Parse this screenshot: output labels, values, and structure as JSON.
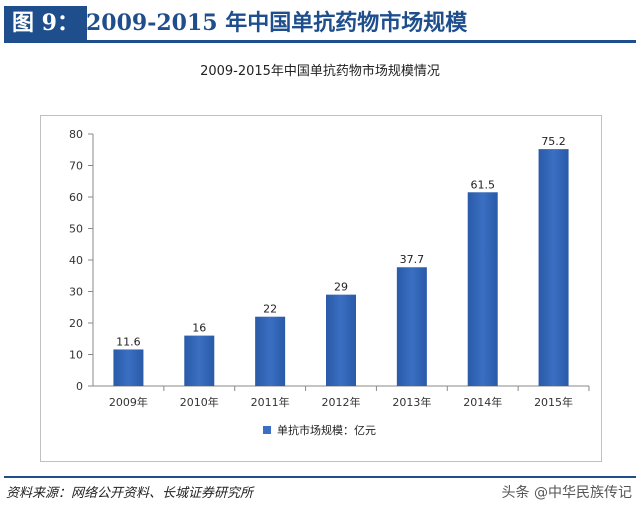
{
  "header": {
    "figure_label": "图 9：",
    "title": "2009-2015 年中国单抗药物市场规模"
  },
  "chart_data": {
    "type": "bar",
    "title": "2009-2015年中国单抗药物市场规模情况",
    "categories": [
      "2009年",
      "2010年",
      "2011年",
      "2012年",
      "2013年",
      "2014年",
      "2015年"
    ],
    "series": [
      {
        "name": "单抗市场规模：亿元",
        "values": [
          11.6,
          16,
          22,
          29,
          37.7,
          61.5,
          75.2
        ],
        "labels": [
          "11.6",
          "16",
          "22",
          "29",
          "37.7",
          "61.5",
          "75.2"
        ],
        "color": "#3a6fc2"
      }
    ],
    "ylim": [
      0,
      80
    ],
    "yticks": [
      0,
      10,
      20,
      30,
      40,
      50,
      60,
      70,
      80
    ],
    "ytick_labels": [
      "0",
      "10",
      "20",
      "30",
      "40",
      "50",
      "60",
      "70",
      "80"
    ],
    "xlabel": "",
    "ylabel": "",
    "grid": false,
    "legend_position": "bottom"
  },
  "footer": {
    "source": "资料来源：网络公开资料、长城证券研究所",
    "watermark": "头条 @中华民族传记"
  }
}
